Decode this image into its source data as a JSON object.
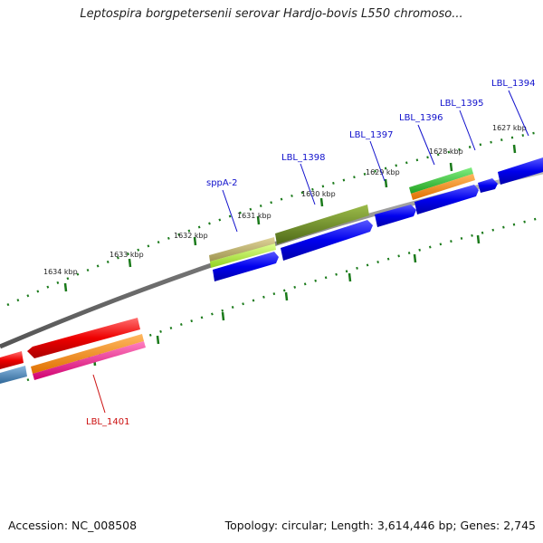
{
  "title": "Leptospira borgpetersenii serovar Hardjo-bovis L550 chromoso...",
  "footer": {
    "accession": "Accession: NC_008508",
    "summary": "Topology: circular; Length: 3,614,446 bp; Genes: 2,745"
  },
  "colors": {
    "backbone": "#808080",
    "tick": "#1a7a1a",
    "label_blue": "#1010cc",
    "label_red": "#cc1010",
    "cds_blue": "#0000ee",
    "cds_red": "#ee0000",
    "cds_olive": "#6b8e23",
    "cds_tan": "#bdb76b",
    "cds_lime": "#adff2f",
    "cds_green": "#32cd32",
    "cds_orange": "#ff8c00",
    "cds_pink": "#ff1493",
    "cds_steel": "#4682b4"
  },
  "scale": {
    "unit": "kbp",
    "labels": [
      "1634 kbp",
      "1633 kbp",
      "1632 kbp",
      "1631 kbp",
      "1630 kbp",
      "1629 kbp",
      "1628 kbp",
      "1627 kbp"
    ]
  },
  "genes": [
    {
      "name": "LBL_1394",
      "strand": "forward"
    },
    {
      "name": "LBL_1395",
      "strand": "forward"
    },
    {
      "name": "LBL_1396",
      "strand": "forward"
    },
    {
      "name": "LBL_1397",
      "strand": "forward"
    },
    {
      "name": "LBL_1398",
      "strand": "forward"
    },
    {
      "name": "sppA-2",
      "strand": "forward"
    },
    {
      "name": "LBL_1401",
      "strand": "reverse"
    }
  ]
}
